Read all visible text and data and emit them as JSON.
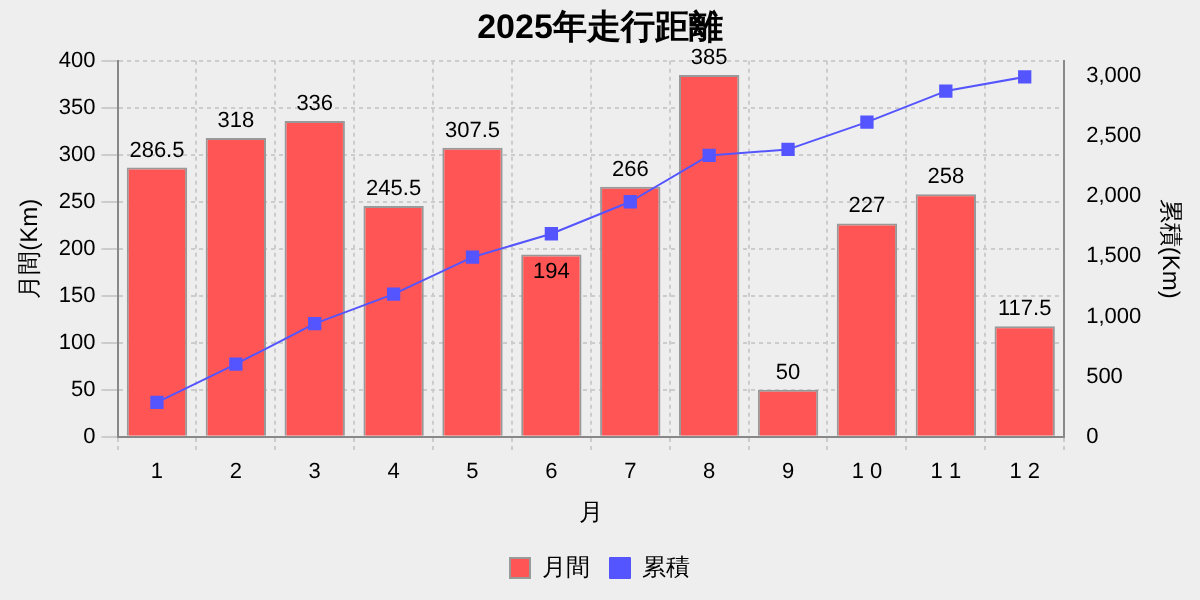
{
  "chart_data": {
    "type": "bar",
    "title": "2025年走行距離",
    "xlabel": "月",
    "ylabel": "月間(Km)",
    "y2label": "累積(Km)",
    "categories": [
      "1",
      "2",
      "3",
      "4",
      "5",
      "6",
      "7",
      "8",
      "9",
      "1 0",
      "1 1",
      "1 2"
    ],
    "series": [
      {
        "name": "月間",
        "color": "#ff5555",
        "values": [
          286.5,
          318,
          336,
          245.5,
          307.5,
          194,
          266,
          385,
          50,
          227,
          258,
          117.5
        ],
        "value_labels": [
          "286.5",
          "318",
          "336",
          "245.5",
          "307.5",
          "194",
          "266",
          "385",
          "50",
          "227",
          "258",
          "117.5"
        ]
      },
      {
        "name": "累積",
        "type": "line",
        "axis": "y2",
        "color": "#5555ff",
        "values": [
          286.5,
          604.5,
          940.5,
          1186,
          1493.5,
          1687.5,
          1953.5,
          2338.5,
          2388.5,
          2615.5,
          2873.5,
          2991
        ]
      }
    ],
    "ylim": [
      0,
      400
    ],
    "yticks": [
      0,
      50,
      100,
      150,
      200,
      250,
      300,
      350,
      400
    ],
    "y2lim": [
      0,
      3125
    ],
    "y2ticks": [
      0,
      {
        "value": 500,
        "label": "500"
      },
      {
        "value": 1000,
        "label": "1,000"
      },
      {
        "value": 1500,
        "label": "1,500"
      },
      {
        "value": 2000,
        "label": "2,000"
      },
      {
        "value": 2500,
        "label": "2,500"
      },
      {
        "value": 3000,
        "label": "3,000"
      }
    ],
    "grid": true,
    "legend": "bottom",
    "marker": "square",
    "line_style": "solid"
  }
}
